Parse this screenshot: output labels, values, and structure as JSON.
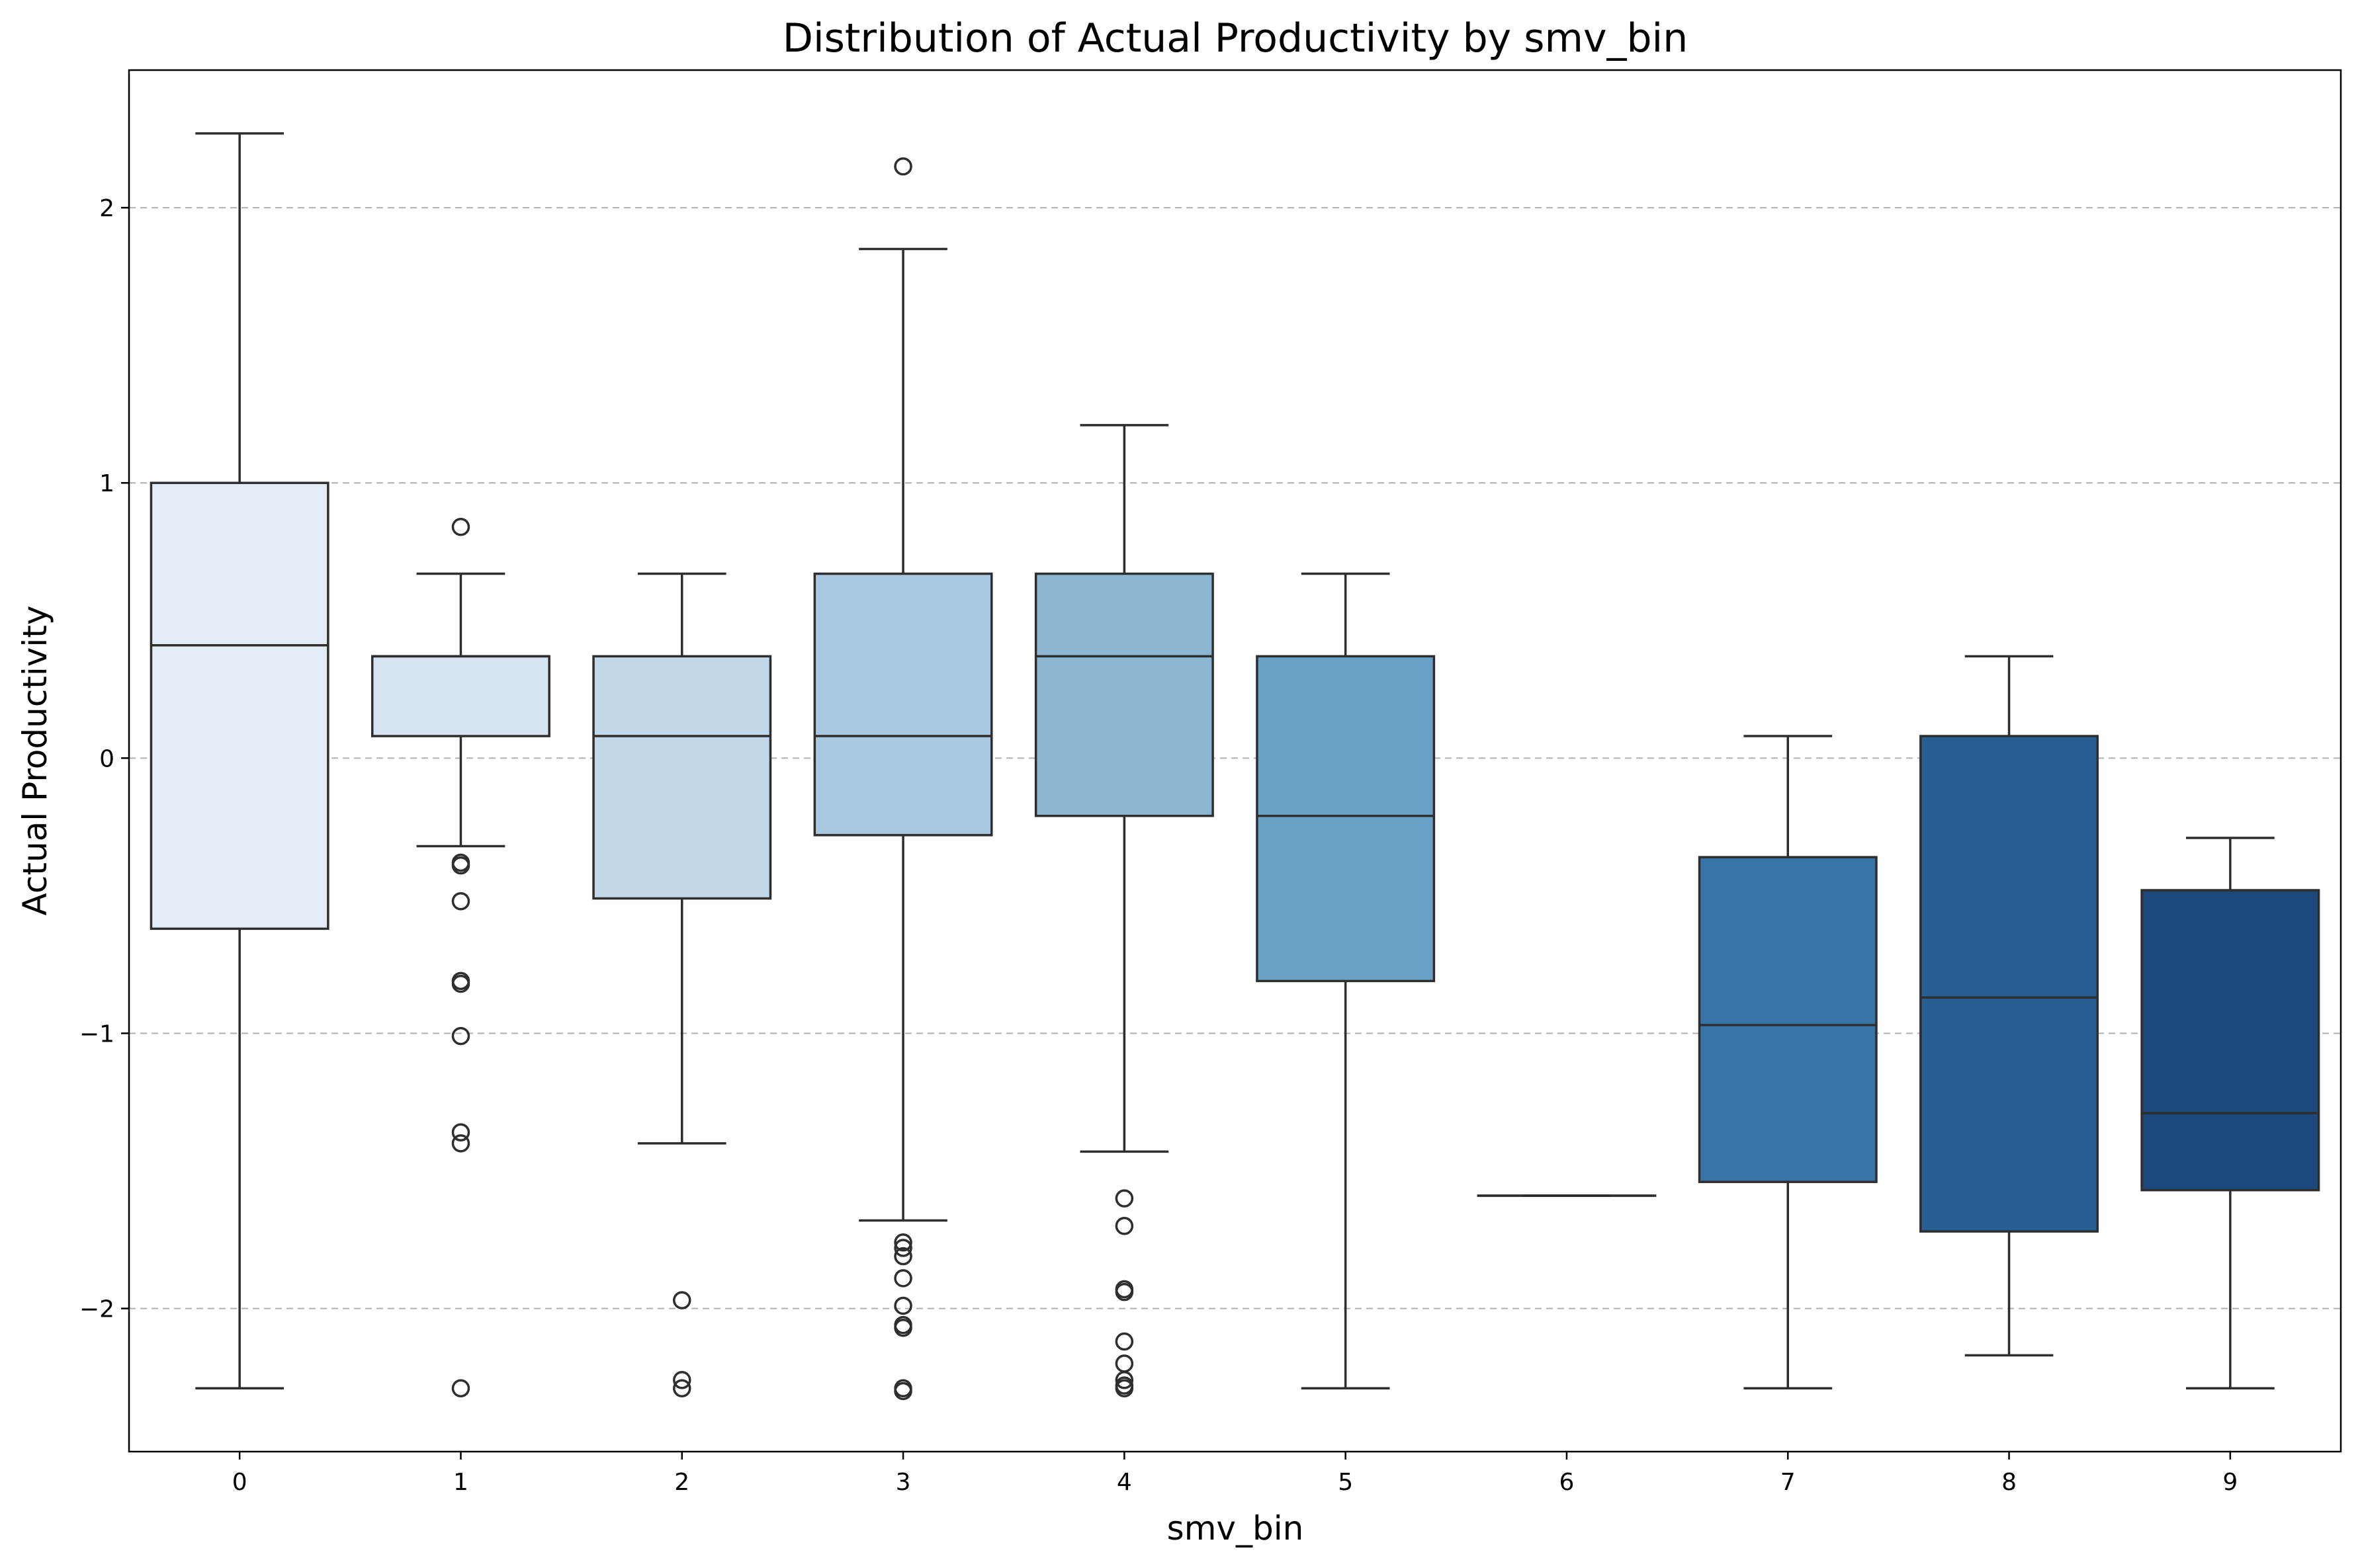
{
  "chart_data": {
    "type": "box",
    "title": "Distribution of Actual Productivity by smv_bin",
    "xlabel": "smv_bin",
    "ylabel": "Actual Productivity",
    "ylim": [
      -2.52,
      2.5
    ],
    "yticks": [
      2,
      1,
      0,
      -1,
      -2
    ],
    "ytick_labels": [
      "2",
      "1",
      "0",
      "−1",
      "−2"
    ],
    "grid": "y, dashed",
    "categories": [
      "0",
      "1",
      "2",
      "3",
      "4",
      "5",
      "6",
      "7",
      "8",
      "9"
    ],
    "boxes": [
      {
        "category": "0",
        "whisker_low": -2.29,
        "q1": -0.62,
        "median": 0.41,
        "q3": 1.0,
        "whisker_high": 2.27,
        "outliers": [],
        "color": "#e4edf7"
      },
      {
        "category": "1",
        "whisker_low": -0.32,
        "q1": 0.08,
        "median": 0.37,
        "q3": 0.37,
        "whisker_high": 0.67,
        "outliers": [
          0.84,
          -0.38,
          -0.39,
          -0.52,
          -0.81,
          -0.82,
          -1.01,
          -1.36,
          -1.4,
          -2.29
        ],
        "color": "#d6e3f0"
      },
      {
        "category": "2",
        "whisker_low": -1.4,
        "q1": -0.51,
        "median": 0.08,
        "q3": 0.37,
        "whisker_high": 0.67,
        "outliers": [
          -1.97,
          -2.26,
          -2.29
        ],
        "color": "#c2d7e8"
      },
      {
        "category": "3",
        "whisker_low": -1.68,
        "q1": -0.28,
        "median": 0.08,
        "q3": 0.67,
        "whisker_high": 1.85,
        "outliers": [
          2.15,
          -1.76,
          -1.78,
          -1.81,
          -1.89,
          -1.99,
          -2.06,
          -2.07,
          -2.29,
          -2.3
        ],
        "color": "#a7c8de"
      },
      {
        "category": "4",
        "whisker_low": -1.43,
        "q1": -0.21,
        "median": 0.37,
        "q3": 0.67,
        "whisker_high": 1.21,
        "outliers": [
          -1.6,
          -1.7,
          -1.93,
          -1.94,
          -2.12,
          -2.2,
          -2.26,
          -2.28,
          -2.29
        ],
        "color": "#8ab6d2"
      },
      {
        "category": "5",
        "whisker_low": -2.29,
        "q1": -0.81,
        "median": -0.21,
        "q3": 0.37,
        "whisker_high": 0.67,
        "outliers": [],
        "color": "#6aa2c7"
      },
      {
        "category": "6",
        "whisker_low": -1.59,
        "q1": -1.59,
        "median": -1.59,
        "q3": -1.59,
        "whisker_high": -1.59,
        "outliers": [],
        "color": "#4e8dbf"
      },
      {
        "category": "7",
        "whisker_low": -2.29,
        "q1": -1.54,
        "median": -0.97,
        "q3": -0.36,
        "whisker_high": 0.08,
        "outliers": [],
        "color": "#3874a7"
      },
      {
        "category": "8",
        "whisker_low": -2.17,
        "q1": -1.72,
        "median": -0.87,
        "q3": 0.08,
        "whisker_high": 0.37,
        "outliers": [],
        "color": "#275f95"
      },
      {
        "category": "9",
        "whisker_low": -2.29,
        "q1": -1.57,
        "median": -1.29,
        "q3": -0.48,
        "whisker_high": -0.29,
        "outliers": [],
        "color": "#1d487c"
      }
    ]
  }
}
